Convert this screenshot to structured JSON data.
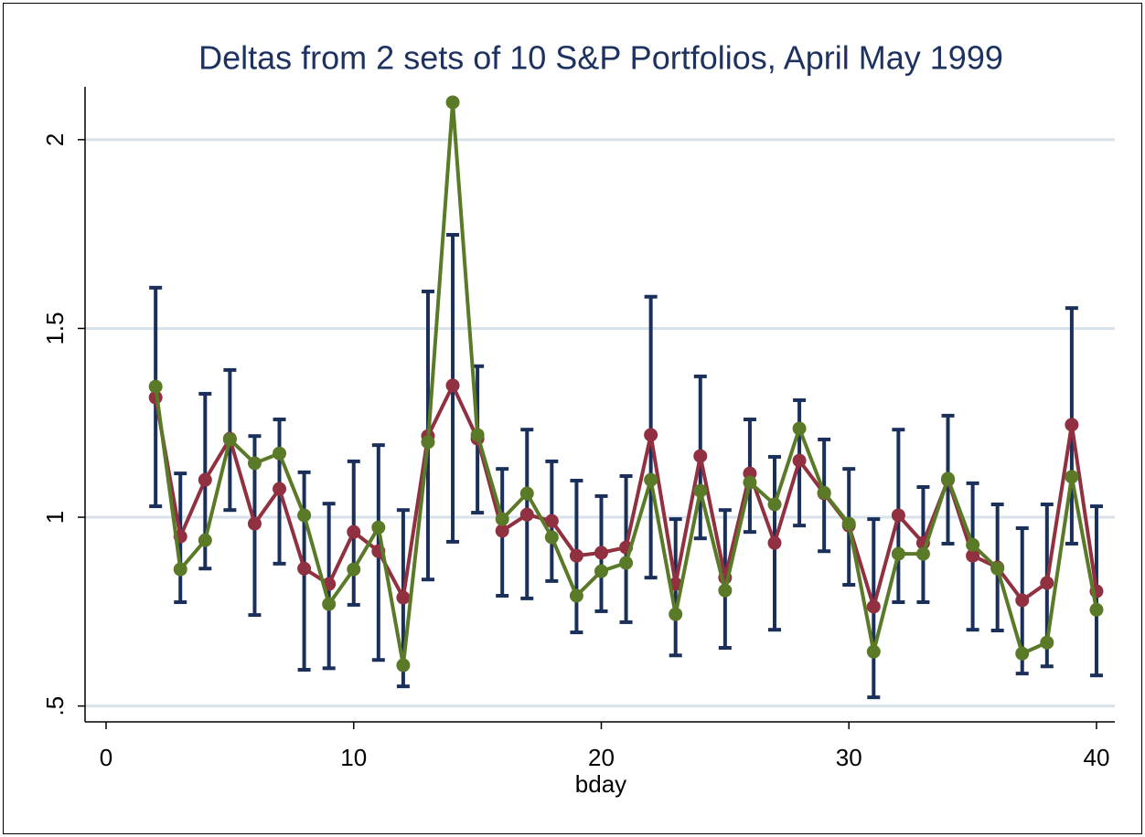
{
  "chart_data": {
    "type": "line",
    "title": "Deltas from 2 sets of 10 S&P Portfolios, April May 1999",
    "xlabel": "bday",
    "x": [
      2,
      3,
      4,
      5,
      6,
      7,
      8,
      9,
      10,
      11,
      12,
      13,
      14,
      15,
      16,
      17,
      18,
      19,
      20,
      21,
      22,
      23,
      24,
      25,
      26,
      27,
      28,
      29,
      30,
      31,
      32,
      33,
      34,
      35,
      36,
      37,
      38,
      39,
      40
    ],
    "series": [
      {
        "color": "#903040",
        "values": [
          1.317,
          0.949,
          1.099,
          1.208,
          0.983,
          1.075,
          0.864,
          0.823,
          0.961,
          0.91,
          0.787,
          1.215,
          1.349,
          1.208,
          0.964,
          1.007,
          0.99,
          0.898,
          0.906,
          0.92,
          1.218,
          0.823,
          1.162,
          0.84,
          1.116,
          0.932,
          1.15,
          1.063,
          0.978,
          0.763,
          1.005,
          0.932,
          1.099,
          0.898,
          0.867,
          0.78,
          0.826,
          1.245,
          0.804
        ]
      },
      {
        "color": "#5a7a28",
        "values": [
          1.346,
          0.862,
          0.939,
          1.206,
          1.143,
          1.169,
          1.005,
          0.77,
          0.862,
          0.973,
          0.608,
          1.199,
          2.099,
          1.218,
          0.995,
          1.063,
          0.947,
          0.792,
          0.857,
          0.879,
          1.099,
          0.743,
          1.07,
          0.806,
          1.092,
          1.034,
          1.235,
          1.065,
          0.983,
          0.644,
          0.903,
          0.903,
          1.102,
          0.927,
          0.864,
          0.639,
          0.668,
          1.107,
          0.755
        ]
      }
    ],
    "error_bars": {
      "color": "#1a2f5a",
      "low": [
        1.029,
        0.775,
        0.864,
        1.019,
        0.741,
        0.877,
        0.596,
        0.6,
        0.768,
        0.622,
        0.552,
        0.835,
        0.935,
        1.012,
        0.792,
        0.785,
        0.831,
        0.695,
        0.751,
        0.722,
        0.84,
        0.634,
        0.944,
        0.654,
        0.961,
        0.702,
        0.978,
        0.91,
        0.821,
        0.523,
        0.775,
        0.775,
        0.93,
        0.702,
        0.7,
        0.586,
        0.605,
        0.93,
        0.581
      ],
      "high": [
        1.608,
        1.116,
        1.327,
        1.39,
        1.215,
        1.259,
        1.119,
        1.036,
        1.148,
        1.191,
        1.019,
        1.598,
        1.748,
        1.4,
        1.128,
        1.232,
        1.148,
        1.097,
        1.056,
        1.109,
        1.584,
        0.995,
        1.373,
        1.019,
        1.259,
        1.16,
        1.31,
        1.206,
        1.128,
        0.995,
        1.232,
        1.08,
        1.269,
        1.09,
        1.034,
        0.971,
        1.034,
        1.554,
        1.029
      ]
    },
    "xlim": [
      -0.85,
      40.74
    ],
    "ylim": [
      0.458,
      2.14
    ],
    "xticks": [
      0,
      10,
      20,
      30,
      40
    ],
    "yticks": [
      {
        "value": 0.5,
        "label": ".5"
      },
      1,
      1.5,
      2
    ],
    "grid": true
  }
}
